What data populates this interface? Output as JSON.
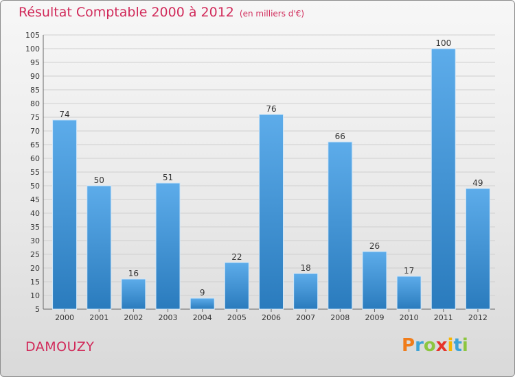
{
  "title": "Résultat Comptable 2000 à 2012",
  "unit_note": "(en milliers d'€)",
  "commune": "DAMOUZY",
  "logo": {
    "letters": [
      "P",
      "r",
      "o",
      "x",
      "i",
      "t",
      "i"
    ],
    "colors": [
      "#f07c1a",
      "#3da3d6",
      "#8cc63f",
      "#e6332a",
      "#f7b500",
      "#3da3d6",
      "#8cc63f"
    ]
  },
  "colors": {
    "bar_light": "#5dacea",
    "bar_dark": "#2a7bbd",
    "title": "#d12a5a"
  },
  "chart_data": {
    "type": "bar",
    "title": "Résultat Comptable 2000 à 2012",
    "categories": [
      "2000",
      "2001",
      "2002",
      "2003",
      "2004",
      "2005",
      "2006",
      "2007",
      "2008",
      "2009",
      "2010",
      "2011",
      "2012"
    ],
    "values": [
      74,
      50,
      16,
      51,
      9,
      22,
      76,
      18,
      66,
      26,
      17,
      100,
      49
    ],
    "ylim": [
      5,
      105
    ],
    "yticks": [
      5,
      10,
      15,
      20,
      25,
      30,
      35,
      40,
      45,
      50,
      55,
      60,
      65,
      70,
      75,
      80,
      85,
      90,
      95,
      100,
      105
    ],
    "grid": true,
    "xlabel": "",
    "ylabel": ""
  }
}
